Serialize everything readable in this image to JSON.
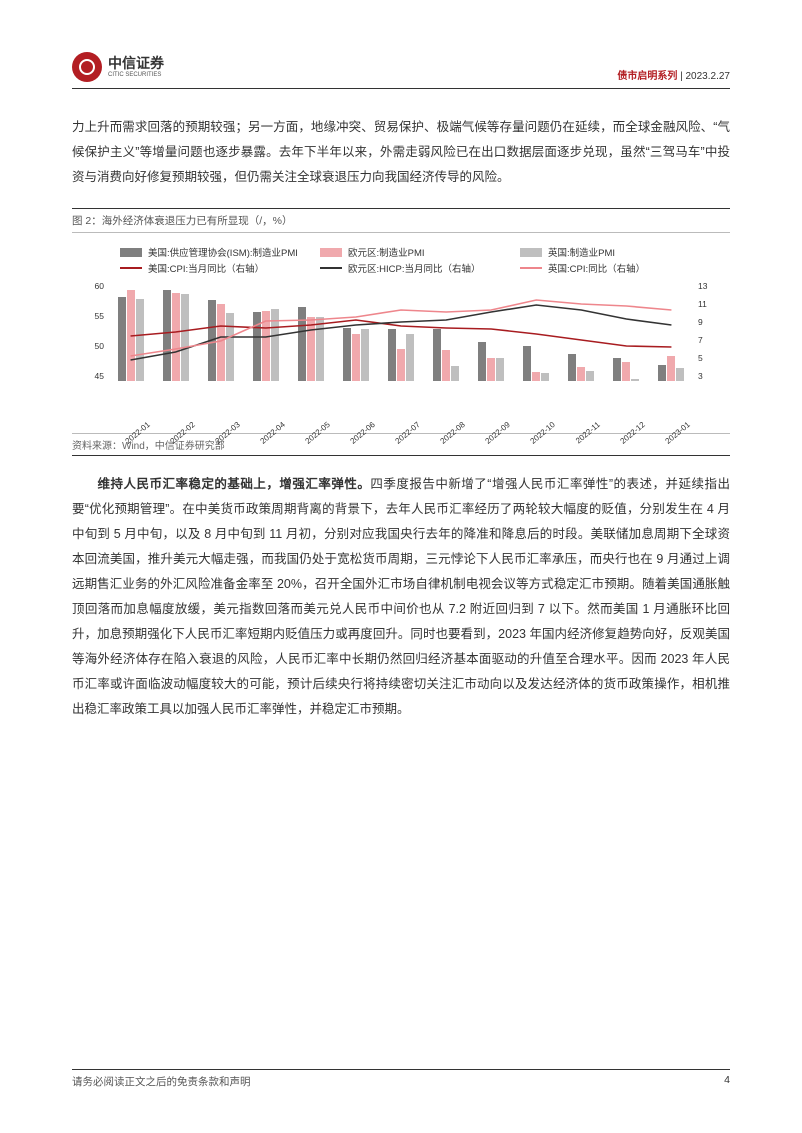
{
  "header": {
    "company_cn": "中信证券",
    "company_en": "CITIC SECURITIES",
    "series": "债市启明系列",
    "date": "2023.2.27",
    "sep": " | "
  },
  "para1": "力上升而需求回落的预期较强；另一方面，地缘冲突、贸易保护、极端气候等存量问题仍在延续，而全球金融风险、“气候保护主义”等增量问题也逐步暴露。去年下半年以来，外需走弱风险已在出口数据层面逐步兑现，虽然“三驾马车”中投资与消费向好修复预期较强，但仍需关注全球衰退压力向我国经济传导的风险。",
  "figure": {
    "title": "图 2：海外经济体衰退压力已有所显现（/，%）",
    "source": "资料来源：Wind，中信证券研究部",
    "legend": [
      {
        "label": "美国:供应管理协会(ISM):制造业PMI",
        "type": "bar",
        "color": "#7f7f7f"
      },
      {
        "label": "欧元区:制造业PMI",
        "type": "bar",
        "color": "#f0a9ad"
      },
      {
        "label": "英国:制造业PMI",
        "type": "bar",
        "color": "#bfbfbf"
      },
      {
        "label": "美国:CPI:当月同比（右轴）",
        "type": "line",
        "color": "#a81c20"
      },
      {
        "label": "欧元区:HICP:当月同比（右轴）",
        "type": "line",
        "color": "#333333"
      },
      {
        "label": "英国:CPI:同比（右轴）",
        "type": "line",
        "color": "#ee868c"
      }
    ],
    "x_categories": [
      "2022-01",
      "2022-02",
      "2022-03",
      "2022-04",
      "2022-05",
      "2022-06",
      "2022-07",
      "2022-08",
      "2022-09",
      "2022-10",
      "2022-11",
      "2022-12",
      "2023-01"
    ],
    "y_left": {
      "min": 45,
      "max": 60,
      "ticks": [
        60,
        55,
        50,
        45
      ]
    },
    "y_right": {
      "min": 3,
      "max": 13,
      "ticks": [
        13,
        11,
        9,
        7,
        5,
        3
      ]
    },
    "bars": {
      "us_ism": [
        57.6,
        58.6,
        57.1,
        55.4,
        56.1,
        53.0,
        52.8,
        52.8,
        50.9,
        50.2,
        49.0,
        48.4,
        47.4
      ],
      "eu_pmi": [
        58.7,
        58.2,
        56.5,
        55.5,
        54.6,
        52.1,
        49.8,
        49.6,
        48.4,
        46.4,
        47.1,
        47.8,
        48.8
      ],
      "uk_pmi": [
        57.3,
        58.0,
        55.2,
        55.8,
        54.6,
        52.8,
        52.1,
        47.3,
        48.4,
        46.2,
        46.5,
        45.3,
        47.0
      ]
    },
    "lines": {
      "us_cpi": [
        7.5,
        7.9,
        8.5,
        8.3,
        8.6,
        9.1,
        8.5,
        8.3,
        8.2,
        7.7,
        7.1,
        6.5,
        6.4
      ],
      "eu_hicp": [
        5.1,
        5.9,
        7.4,
        7.4,
        8.1,
        8.6,
        8.9,
        9.1,
        9.9,
        10.6,
        10.1,
        9.2,
        8.6
      ],
      "uk_cpi": [
        5.5,
        6.2,
        7.0,
        9.0,
        9.1,
        9.4,
        10.1,
        9.9,
        10.1,
        11.1,
        10.7,
        10.5,
        10.1
      ]
    },
    "colors": {
      "bar1": "#7f7f7f",
      "bar2": "#f0a9ad",
      "bar3": "#bfbfbf",
      "line1": "#a81c20",
      "line2": "#333333",
      "line3": "#ee868c"
    }
  },
  "para2_bold": "维持人民币汇率稳定的基础上，增强汇率弹性。",
  "para2_rest": "四季度报告中新增了“增强人民币汇率弹性”的表述，并延续指出要“优化预期管理”。在中美货币政策周期背离的背景下，去年人民币汇率经历了两轮较大幅度的贬值，分别发生在 4 月中旬到 5 月中旬，以及 8 月中旬到 11 月初，分别对应我国央行去年的降准和降息后的时段。美联储加息周期下全球资本回流美国，推升美元大幅走强，而我国仍处于宽松货币周期，三元悖论下人民币汇率承压，而央行也在 9 月通过上调远期售汇业务的外汇风险准备金率至 20%，召开全国外汇市场自律机制电视会议等方式稳定汇市预期。随着美国通胀触顶回落而加息幅度放缓，美元指数回落而美元兑人民币中间价也从 7.2 附近回归到 7 以下。然而美国 1 月通胀环比回升，加息预期强化下人民币汇率短期内贬值压力或再度回升。同时也要看到，2023 年国内经济修复趋势向好，反观美国等海外经济体存在陷入衰退的风险，人民币汇率中长期仍然回归经济基本面驱动的升值至合理水平。因而 2023 年人民币汇率或许面临波动幅度较大的可能，预计后续央行将持续密切关注汇市动向以及发达经济体的货币政策操作，相机推出稳汇率政策工具以加强人民币汇率弹性，并稳定汇市预期。",
  "footer": {
    "disclaimer": "请务必阅读正文之后的免责条款和声明",
    "page": "4"
  }
}
